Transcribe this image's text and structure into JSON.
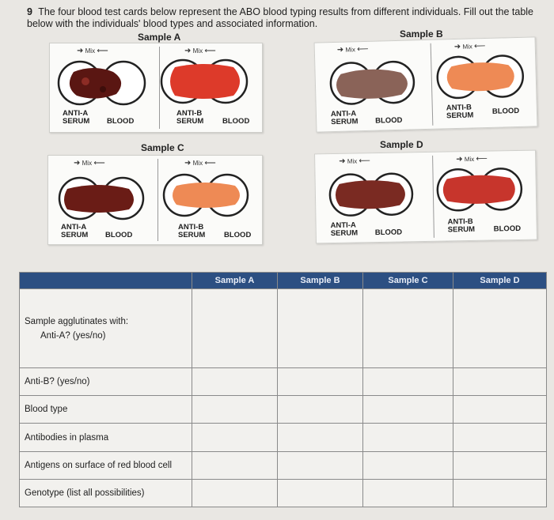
{
  "question": {
    "number": "9",
    "text": "The four blood test cards below represent the ABO blood typing results from different individuals. Fill out the table below with the individuals' blood types and associated information."
  },
  "cards": {
    "mix_label": "Mix",
    "anti_a": "ANTI-A",
    "anti_b": "ANTI-B",
    "serum": "SERUM",
    "blood": "BLOOD",
    "samples": [
      {
        "name": "Sample A"
      },
      {
        "name": "Sample B"
      },
      {
        "name": "Sample C"
      },
      {
        "name": "Sample D"
      }
    ]
  },
  "table": {
    "headers": [
      "",
      "Sample A",
      "Sample B",
      "Sample C",
      "Sample D"
    ],
    "rows": [
      {
        "label": "Sample agglutinates with:",
        "sub": "Anti-A? (yes/no)"
      },
      {
        "label": "Anti-B? (yes/no)"
      },
      {
        "label": "Blood type"
      },
      {
        "label": "Antibodies in plasma"
      },
      {
        "label": "Antigens on surface of red blood cell"
      },
      {
        "label": "Genotype (list all possibilities)"
      }
    ]
  },
  "colors": {
    "header_bg": "#2c4f82",
    "agglutinated": "#5a1612",
    "smooth_red": "#dd3a2a",
    "smooth_orange": "#ee8a55"
  }
}
